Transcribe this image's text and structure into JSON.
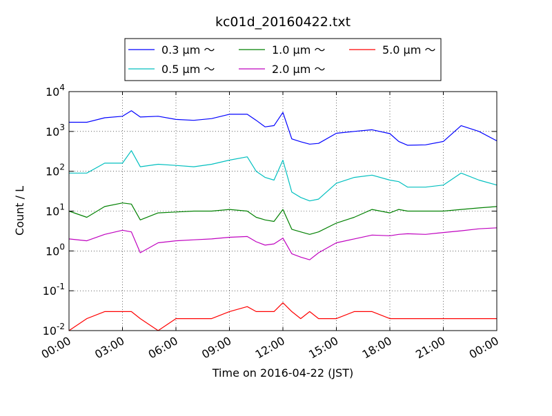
{
  "chart_data": {
    "type": "line",
    "title": "kc01d_20160422.txt",
    "xlabel": "Time on 2016-04-22 (JST)",
    "ylabel": "Count / L",
    "yscale": "log",
    "ylim": [
      0.01,
      10000
    ],
    "xlim": [
      "00:00",
      "24:00"
    ],
    "grid": true,
    "legend_position": "top-center",
    "x_tick_labels": [
      "00:00",
      "03:00",
      "06:00",
      "09:00",
      "12:00",
      "15:00",
      "18:00",
      "21:00",
      "00:00"
    ],
    "y_ticks": [
      {
        "value": 0.01,
        "base": "10",
        "exp": "-2"
      },
      {
        "value": 0.1,
        "base": "10",
        "exp": "-1"
      },
      {
        "value": 1,
        "base": "10",
        "exp": "0"
      },
      {
        "value": 10,
        "base": "10",
        "exp": "1"
      },
      {
        "value": 100,
        "base": "10",
        "exp": "2"
      },
      {
        "value": 1000,
        "base": "10",
        "exp": "3"
      },
      {
        "value": 10000,
        "base": "10",
        "exp": "4"
      }
    ],
    "x_hours": [
      0,
      1,
      2,
      3,
      3.5,
      4,
      5,
      6,
      7,
      8,
      9,
      10,
      10.5,
      11,
      11.5,
      12,
      12.5,
      13,
      13.5,
      14,
      15,
      16,
      17,
      18,
      18.5,
      19,
      20,
      21,
      22,
      23,
      24
    ],
    "series": [
      {
        "name": "0.3 μm ～",
        "color": "#0000ff",
        "values": [
          1700,
          1700,
          2200,
          2400,
          3300,
          2300,
          2400,
          2000,
          1900,
          2100,
          2700,
          2700,
          1900,
          1300,
          1400,
          3000,
          650,
          550,
          480,
          500,
          900,
          1000,
          1100,
          880,
          560,
          450,
          460,
          560,
          1400,
          1000,
          580
        ]
      },
      {
        "name": "0.5 μm ～",
        "color": "#00bfbf",
        "values": [
          90,
          90,
          160,
          160,
          330,
          130,
          150,
          140,
          130,
          150,
          190,
          230,
          100,
          70,
          60,
          190,
          30,
          22,
          18,
          20,
          50,
          70,
          80,
          60,
          55,
          40,
          40,
          45,
          90,
          60,
          45
        ]
      },
      {
        "name": "1.0 μm ～",
        "color": "#008000",
        "values": [
          10,
          7,
          13,
          16,
          15,
          6,
          9,
          9.5,
          10,
          10,
          11,
          10,
          7,
          6,
          5.5,
          11,
          3.5,
          3,
          2.6,
          3,
          5,
          7,
          11,
          9,
          11,
          10,
          10,
          10,
          11,
          12,
          13
        ]
      },
      {
        "name": "2.0 μm ～",
        "color": "#bf00bf",
        "values": [
          2,
          1.8,
          2.6,
          3.3,
          3,
          0.9,
          1.6,
          1.8,
          1.9,
          2,
          2.2,
          2.3,
          1.7,
          1.4,
          1.5,
          2.1,
          0.85,
          0.7,
          0.6,
          0.9,
          1.6,
          2,
          2.5,
          2.4,
          2.6,
          2.7,
          2.6,
          2.9,
          3.2,
          3.6,
          3.8
        ]
      },
      {
        "name": "5.0 μm ～",
        "color": "#ff0000",
        "values": [
          0.01,
          0.02,
          0.03,
          0.03,
          0.03,
          0.02,
          0.01,
          0.02,
          0.02,
          0.02,
          0.03,
          0.04,
          0.03,
          0.03,
          0.03,
          0.05,
          0.03,
          0.02,
          0.03,
          0.02,
          0.02,
          0.03,
          0.03,
          0.02,
          0.02,
          0.02,
          0.02,
          0.02,
          0.02,
          0.02,
          0.02
        ]
      }
    ]
  }
}
